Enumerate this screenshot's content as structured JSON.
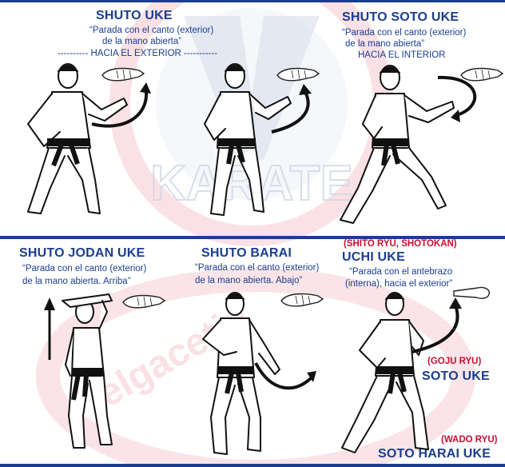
{
  "colors": {
    "title_blue": "#1a3d8f",
    "school_red": "#c8102e",
    "watermark": "#f6c9cf"
  },
  "watermark": {
    "text": "KARATE",
    "site": "elgacetin"
  },
  "panels": [
    {
      "title": "SHUTO UKE",
      "desc1": "“Parada con el canto (exterior)",
      "desc2": "de la mano abierta”",
      "desc3": "---------- HACIA EL EXTERIOR -----------"
    },
    {
      "title": "SHUTO SOTO UKE",
      "desc1": "“Parada con el canto (exterior)",
      "desc2": "de la mano abierta”",
      "desc3": "HACIA EL INTERIOR"
    },
    {
      "title": "SHUTO JODAN UKE",
      "desc1": "“Parada con el canto (exterior)",
      "desc2": "de la mano abierta. Arriba”"
    },
    {
      "title": "SHUTO BARAI",
      "desc1": "“Parada con el canto (exterior)",
      "desc2": "de la mano abierta. Abajo”"
    },
    {
      "title": "UCHI UKE",
      "school": "(SHITO RYU, SHOTOKAN)",
      "desc1": "“Parada con el antebrazo",
      "desc2": "(interna), hacia el exterior”"
    }
  ],
  "aliases": [
    {
      "school": "(GOJU RYU)",
      "name": "SOTO UKE"
    },
    {
      "school": "(WADO RYU)",
      "name": "SOTO HARAI UKE"
    }
  ]
}
